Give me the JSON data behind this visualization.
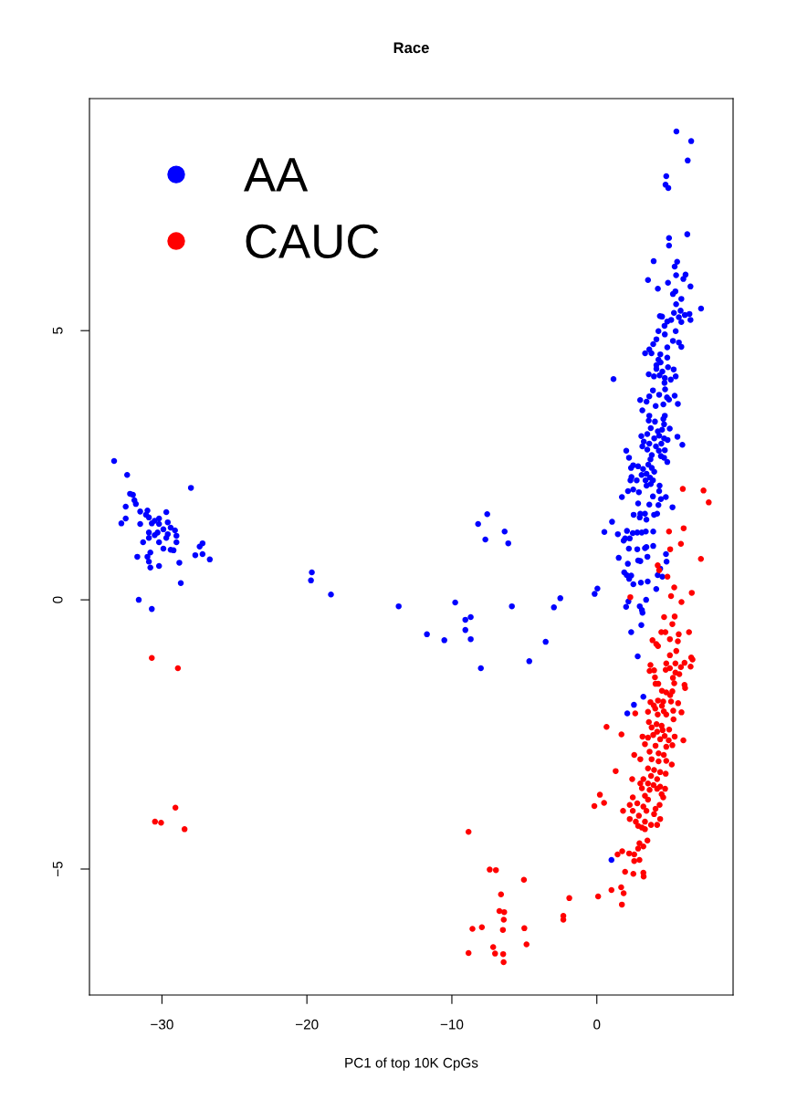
{
  "chart_data": {
    "type": "scatter",
    "title": "Race",
    "xlabel": "PC1 of top 10K CpGs",
    "xlim": [
      -35.0,
      9.4
    ],
    "ylim": [
      -7.34,
      9.31
    ],
    "xticks": [
      {
        "value": -30,
        "label": "−30"
      },
      {
        "value": -20,
        "label": "−20"
      },
      {
        "value": -10,
        "label": "−10"
      },
      0
    ],
    "yticks": [
      {
        "value": -5,
        "label": "−5"
      },
      0,
      5
    ],
    "legend": "top left",
    "marker": "circle",
    "grid": false,
    "series": [
      {
        "name": "AA",
        "color": "#0000ff",
        "x": [
          -33.3,
          -32.4,
          -28.0,
          -32.2,
          -32.0,
          -31.9,
          -31.8,
          -32.5,
          -31.5,
          -31.0,
          -29.7,
          -31.1,
          -30.9,
          -32.5,
          -32.8,
          -31.5,
          -30.2,
          -30.5,
          -30.7,
          -30.2,
          -29.6,
          -29.4,
          -29.9,
          -29.1,
          -30.9,
          -30.3,
          -30.5,
          -29.6,
          -29.0,
          -30.9,
          -29.7,
          -31.3,
          -30.2,
          -29.0,
          -27.2,
          -27.4,
          -29.9,
          -29.4,
          -29.2,
          -30.8,
          -27.7,
          -27.2,
          -31.7,
          -31.0,
          -26.7,
          -30.9,
          -28.8,
          -30.8,
          -30.2,
          -28.7,
          -31.6,
          -30.7,
          -7.56,
          -8.19,
          -6.36,
          -7.69,
          -6.11,
          -19.66,
          -19.72,
          -18.34,
          -13.67,
          -9.77,
          -5.86,
          -2.52,
          -2.96,
          -8.7,
          -9.07,
          -9.07,
          -11.72,
          -10.52,
          -8.7,
          -3.53,
          -4.66,
          -8.0,
          5.49,
          6.51,
          6.27,
          4.79,
          4.74,
          4.93,
          6.24,
          4.98,
          4.98,
          3.92,
          5.54,
          5.37,
          6.12,
          5.47,
          3.53,
          5.97,
          4.91,
          4.21,
          6.46,
          5.42,
          5.25,
          5.83,
          7.19,
          5.47,
          5.32,
          5.78,
          6.39,
          6.07,
          5.66,
          5.83,
          6.46,
          4.35,
          4.5,
          5.13,
          4.86,
          4.67,
          4.25,
          5.44,
          4.69,
          4.11,
          5.25,
          5.66,
          5.83,
          3.89,
          4.86,
          3.62,
          3.77,
          3.33,
          4.38,
          4.25,
          4.86,
          4.4,
          4.11,
          4.11,
          4.52,
          4.91,
          5.3,
          3.58,
          3.94,
          4.33,
          4.69,
          5.1,
          5.44,
          1.15,
          4.67,
          4.71,
          3.87,
          4.3,
          4.84,
          5.37,
          3.62,
          2.99,
          3.43,
          4.06,
          4.59,
          4.98,
          5.59,
          3.14,
          3.62,
          4.69,
          3.58,
          4.01,
          4.59,
          4.64,
          5.03,
          3.72,
          4.21,
          4.5,
          4.3,
          3.96,
          3.07,
          3.48,
          4.64,
          5.56,
          5.9,
          3.24,
          3.62,
          4.08,
          4.45,
          4.88,
          3.14,
          3.48,
          4.28,
          4.69,
          2.03,
          3.79,
          4.42,
          4.64,
          4.86,
          2.22,
          3.7,
          3.55,
          3.79,
          2.51,
          2.85,
          2.36,
          3.19,
          3.96,
          3.43,
          3.09,
          3.67,
          2.39,
          2.75,
          2.32,
          3.36,
          3.87,
          3.43,
          3.72,
          4.33,
          2.15,
          2.51,
          2.9,
          4.3,
          1.73,
          3.87,
          4.76,
          4.42,
          2.85,
          3.62,
          4.25,
          5.22,
          2.54,
          3.0,
          3.32,
          3.95,
          4.16,
          2.96,
          3.42,
          1.05,
          0.52,
          1.45,
          2.08,
          2.48,
          2.79,
          3.1,
          3.38,
          3.89,
          1.95,
          2.27,
          1.85,
          2.21,
          2.79,
          3.32,
          3.42,
          3.89,
          4.77,
          4.81,
          1.51,
          2.14,
          2.85,
          3.0,
          3.49,
          4.37,
          1.89,
          2.06,
          2.23,
          2.37,
          2.52,
          3.04,
          3.51,
          4.1,
          4.2,
          4.52,
          0.04,
          -0.15,
          2.18,
          2.02,
          3.4,
          2.96,
          3.11,
          3.15,
          3.07,
          2.37,
          2.82,
          3.21,
          2.56,
          2.1,
          1.01
        ],
        "values": [
          2.58,
          2.32,
          2.08,
          1.97,
          1.95,
          1.85,
          1.78,
          1.73,
          1.64,
          1.66,
          1.63,
          1.58,
          1.53,
          1.51,
          1.42,
          1.41,
          1.51,
          1.47,
          1.42,
          1.41,
          1.44,
          1.34,
          1.31,
          1.29,
          1.25,
          1.25,
          1.2,
          1.22,
          1.19,
          1.15,
          1.15,
          1.07,
          1.07,
          1.07,
          1.05,
          0.99,
          0.95,
          0.93,
          0.92,
          0.88,
          0.83,
          0.85,
          0.8,
          0.8,
          0.75,
          0.71,
          0.69,
          0.6,
          0.63,
          0.31,
          0.0,
          -0.17,
          1.59,
          1.41,
          1.27,
          1.12,
          1.05,
          0.51,
          0.36,
          0.1,
          -0.12,
          -0.05,
          -0.12,
          0.03,
          -0.14,
          -0.32,
          -0.37,
          -0.56,
          -0.64,
          -0.75,
          -0.73,
          -0.78,
          -1.14,
          -1.27,
          8.7,
          8.52,
          8.16,
          7.87,
          7.71,
          7.65,
          6.79,
          6.72,
          6.58,
          6.29,
          6.28,
          6.19,
          6.04,
          6.03,
          5.94,
          5.96,
          5.89,
          5.78,
          5.82,
          5.73,
          5.68,
          5.59,
          5.41,
          5.49,
          5.33,
          5.37,
          5.31,
          5.29,
          5.25,
          5.16,
          5.2,
          5.27,
          5.26,
          5.2,
          5.17,
          5.09,
          4.99,
          4.99,
          4.93,
          4.84,
          4.81,
          4.78,
          4.7,
          4.75,
          4.69,
          4.65,
          4.58,
          4.58,
          4.56,
          4.46,
          4.5,
          4.41,
          4.36,
          4.29,
          4.24,
          4.32,
          4.28,
          4.19,
          4.15,
          4.17,
          4.12,
          4.09,
          4.15,
          4.1,
          4.03,
          3.91,
          3.89,
          3.81,
          3.76,
          3.79,
          3.78,
          3.71,
          3.68,
          3.6,
          3.63,
          3.72,
          3.64,
          3.52,
          3.42,
          3.42,
          3.33,
          3.31,
          3.36,
          3.26,
          3.18,
          3.19,
          3.13,
          3.16,
          3.05,
          3.0,
          3.04,
          3.08,
          3.0,
          3.03,
          2.88,
          2.94,
          2.9,
          2.85,
          2.9,
          2.97,
          2.85,
          2.79,
          2.77,
          2.78,
          2.77,
          2.69,
          2.67,
          2.64,
          2.56,
          2.64,
          2.61,
          2.51,
          2.45,
          2.5,
          2.48,
          2.45,
          2.43,
          2.38,
          2.34,
          2.32,
          2.27,
          2.28,
          2.22,
          2.22,
          2.22,
          2.22,
          2.12,
          2.15,
          2.12,
          2.02,
          2.05,
          2.0,
          2.02,
          1.91,
          1.92,
          1.91,
          1.87,
          1.79,
          1.77,
          1.76,
          1.72,
          1.58,
          1.6,
          1.6,
          1.58,
          1.6,
          1.53,
          1.49,
          1.45,
          1.26,
          1.22,
          1.28,
          1.24,
          1.25,
          1.25,
          1.27,
          1.27,
          1.14,
          1.14,
          1.1,
          0.95,
          0.94,
          0.96,
          0.98,
          1.0,
          0.85,
          0.71,
          0.78,
          0.67,
          0.73,
          0.72,
          0.8,
          0.58,
          0.51,
          0.46,
          0.39,
          0.45,
          0.29,
          0.32,
          0.34,
          0.2,
          0.46,
          0.43,
          0.21,
          0.11,
          -0.03,
          -0.13,
          0.0,
          -0.12,
          -0.19,
          -0.24,
          -0.47,
          -0.6,
          -1.05,
          -1.8,
          -1.95,
          -2.11,
          -4.83
        ]
      },
      {
        "name": "CAUC",
        "color": "#ff0000",
        "x": [
          -30.7,
          -28.9,
          -29.07,
          -30.48,
          -30.06,
          -28.44,
          -8.85,
          -7.39,
          -6.96,
          -5.03,
          -6.61,
          -1.9,
          0.09,
          -6.72,
          -6.39,
          -6.42,
          -2.31,
          -2.31,
          -8.58,
          -7.93,
          -6.48,
          -5.0,
          -4.85,
          -8.85,
          -7.15,
          -7.02,
          -6.46,
          -6.43,
          1.73,
          5.93,
          7.36,
          7.72,
          4.98,
          5.99,
          5.8,
          7.18,
          5.06,
          4.2,
          4.3,
          4.87,
          5.34,
          5.12,
          6.55,
          5.84,
          2.31,
          4.64,
          5.37,
          5.21,
          4.45,
          4.73,
          6.36,
          5.65,
          5.59,
          5.04,
          3.84,
          4.1,
          4.22,
          5.48,
          5.04,
          6.51,
          6.6,
          3.7,
          4.79,
          5.42,
          6.05,
          6.47,
          5.04,
          5.8,
          3.64,
          3.95,
          4.75,
          5.42,
          5.69,
          4.01,
          4.05,
          4.24,
          5.25,
          5.34,
          6.05,
          6.09,
          4.49,
          4.79,
          5.21,
          5.06,
          3.7,
          4.22,
          4.58,
          5.12,
          5.61,
          4.49,
          3.93,
          2.65,
          3.53,
          4.03,
          4.62,
          5.27,
          5.84,
          5.29,
          4.79,
          4.2,
          0.67,
          1.7,
          3.59,
          3.78,
          4.12,
          4.47,
          4.99,
          4.54,
          4.16,
          3.15,
          3.89,
          4.68,
          5.37,
          5.97,
          3.53,
          4.37,
          4.96,
          3.32,
          4.05,
          4.79,
          5.21,
          3.64,
          4.26,
          4.62,
          2.58,
          3.0,
          3.78,
          4.26,
          4.79,
          5.17,
          1.3,
          3.53,
          3.95,
          4.37,
          4.75,
          3.74,
          3.21,
          4.16,
          3.0,
          3.53,
          3.91,
          4.37,
          4.71,
          2.44,
          3.11,
          3.64,
          4.16,
          4.47,
          0.21,
          0.5,
          -0.17,
          2.48,
          3.32,
          3.53,
          4.58,
          2.79,
          2.27,
          3.21,
          4.33,
          4.05,
          1.81,
          2.48,
          3.42,
          2.9,
          3.95,
          4.37,
          2.27,
          2.69,
          3.32,
          3.11,
          3.74,
          4.16,
          2.85,
          3.32,
          2.94,
          3.49,
          3.21,
          2.85,
          1.75,
          1.43,
          2.23,
          2.58,
          2.94,
          2.58,
          1.95,
          2.52,
          3.21,
          3.23,
          1.01,
          1.68,
          1.85
        ],
        "values": [
          -1.08,
          -1.27,
          -3.86,
          -4.12,
          -4.14,
          -4.26,
          -4.31,
          -5.01,
          -5.02,
          -5.2,
          -5.47,
          -5.54,
          -5.51,
          -5.78,
          -5.8,
          -5.94,
          -5.87,
          -5.94,
          -6.11,
          -6.08,
          -6.13,
          -6.1,
          -6.4,
          -6.56,
          -6.45,
          -6.57,
          -6.58,
          -6.73,
          -5.66,
          2.06,
          2.03,
          1.81,
          1.27,
          1.33,
          1.04,
          0.76,
          0.94,
          0.64,
          0.55,
          0.43,
          0.23,
          0.07,
          0.13,
          -0.04,
          0.05,
          -0.32,
          -0.31,
          -0.45,
          -0.6,
          -0.6,
          -0.6,
          -0.64,
          -0.77,
          -0.73,
          -0.75,
          -0.82,
          -0.86,
          -0.95,
          -1.03,
          -1.07,
          -1.11,
          -1.21,
          -1.18,
          -1.18,
          -1.17,
          -1.24,
          -1.27,
          -1.25,
          -1.32,
          -1.31,
          -1.3,
          -1.35,
          -1.38,
          -1.44,
          -1.56,
          -1.56,
          -1.45,
          -1.55,
          -1.58,
          -1.64,
          -1.69,
          -1.72,
          -1.7,
          -1.77,
          -1.9,
          -1.87,
          -1.89,
          -1.89,
          -1.92,
          -1.97,
          -1.96,
          -2.11,
          -2.08,
          -2.02,
          -2.07,
          -2.06,
          -2.09,
          -2.22,
          -2.13,
          -2.13,
          -2.36,
          -2.5,
          -2.27,
          -2.37,
          -2.31,
          -2.34,
          -2.41,
          -2.42,
          -2.45,
          -2.54,
          -2.51,
          -2.53,
          -2.54,
          -2.61,
          -2.56,
          -2.59,
          -2.61,
          -2.68,
          -2.71,
          -2.73,
          -2.7,
          -2.82,
          -2.85,
          -2.88,
          -2.88,
          -2.96,
          -2.96,
          -3.0,
          -2.99,
          -3.06,
          -3.18,
          -3.13,
          -3.16,
          -3.2,
          -3.23,
          -3.27,
          -3.33,
          -3.33,
          -3.41,
          -3.41,
          -3.44,
          -3.47,
          -3.51,
          -3.33,
          -3.5,
          -3.53,
          -3.51,
          -3.61,
          -3.62,
          -3.77,
          -3.83,
          -3.67,
          -3.64,
          -3.71,
          -3.67,
          -3.78,
          -3.81,
          -3.84,
          -3.81,
          -3.88,
          -3.92,
          -3.92,
          -3.92,
          -4.01,
          -3.98,
          -4.07,
          -4.07,
          -4.12,
          -4.12,
          -4.23,
          -4.18,
          -4.18,
          -4.2,
          -4.26,
          -4.52,
          -4.47,
          -4.58,
          -4.62,
          -4.67,
          -4.73,
          -4.71,
          -4.73,
          -4.83,
          -4.85,
          -5.05,
          -5.09,
          -5.07,
          -5.14,
          -5.39,
          -5.34,
          -5.45
        ]
      }
    ]
  }
}
